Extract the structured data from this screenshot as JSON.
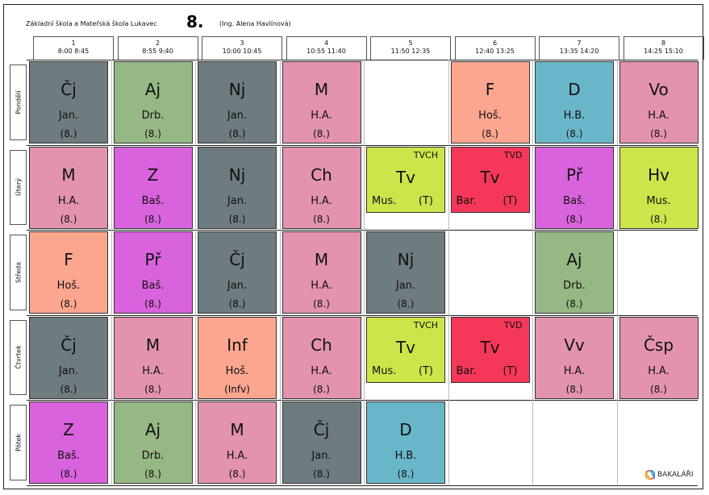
{
  "header": {
    "school": "Základní škola a Mateřská škola Lukavec",
    "class_name": "8.",
    "teacher": "(Ing. Alena Havlínová)"
  },
  "hours": [
    {
      "num": "1",
      "time": "8:00 8:45"
    },
    {
      "num": "2",
      "time": "8:55 9:40"
    },
    {
      "num": "3",
      "time": "10:00 10:45"
    },
    {
      "num": "4",
      "time": "10:55 11:40"
    },
    {
      "num": "5",
      "time": "11:50 12:35"
    },
    {
      "num": "6",
      "time": "12:40 13:25"
    },
    {
      "num": "7",
      "time": "13:35 14:20"
    },
    {
      "num": "8",
      "time": "14:25 15:10"
    }
  ],
  "days": [
    "Pondělí",
    "Úterý",
    "Středa",
    "Čtvrtek",
    "Pátek"
  ],
  "colors": {
    "dark": "#6e7b80",
    "pink": "#e393ae",
    "green": "#96b884",
    "salmon": "#fca690",
    "blue": "#6ab6c9",
    "purple": "#d963dd",
    "lime": "#cde44b",
    "red": "#f5375a"
  },
  "lessons": [
    [
      {
        "subject": "Čj",
        "teacher": "Jan.",
        "room": "(8.)",
        "color": "#6e7b80"
      },
      {
        "subject": "Aj",
        "teacher": "Drb.",
        "room": "(8.)",
        "color": "#96b884"
      },
      {
        "subject": "Nj",
        "teacher": "Jan.",
        "room": "(8.)",
        "color": "#6e7b80"
      },
      {
        "subject": "M",
        "teacher": "H.A.",
        "room": "(8.)",
        "color": "#e393ae"
      },
      null,
      {
        "subject": "F",
        "teacher": "Hoš.",
        "room": "(8.)",
        "color": "#fca690"
      },
      {
        "subject": "D",
        "teacher": "H.B.",
        "room": "(8.)",
        "color": "#6ab6c9"
      },
      {
        "subject": "Vo",
        "teacher": "H.A.",
        "room": "(8.)",
        "color": "#e393ae"
      }
    ],
    [
      {
        "subject": "M",
        "teacher": "H.A.",
        "room": "(8.)",
        "color": "#e393ae"
      },
      {
        "subject": "Z",
        "teacher": "Baš.",
        "room": "(8.)",
        "color": "#d963dd"
      },
      {
        "subject": "Nj",
        "teacher": "Jan.",
        "room": "(8.)",
        "color": "#6e7b80"
      },
      {
        "subject": "Ch",
        "teacher": "H.A.",
        "room": "(8.)",
        "color": "#e393ae"
      },
      {
        "subject": "Tv",
        "teacher": "Mus.",
        "room": "(T)",
        "group": "TVCH",
        "color": "#cde44b"
      },
      {
        "subject": "Tv",
        "teacher": "Bar.",
        "room": "(T)",
        "group": "TVD",
        "color": "#f5375a"
      },
      {
        "subject": "Př",
        "teacher": "Baš.",
        "room": "(8.)",
        "color": "#d963dd"
      },
      {
        "subject": "Hv",
        "teacher": "Mus.",
        "room": "(8.)",
        "color": "#cde44b"
      }
    ],
    [
      {
        "subject": "F",
        "teacher": "Hoš.",
        "room": "(8.)",
        "color": "#fca690"
      },
      {
        "subject": "Př",
        "teacher": "Baš.",
        "room": "(8.)",
        "color": "#d963dd"
      },
      {
        "subject": "Čj",
        "teacher": "Jan.",
        "room": "(8.)",
        "color": "#6e7b80"
      },
      {
        "subject": "M",
        "teacher": "H.A.",
        "room": "(8.)",
        "color": "#e393ae"
      },
      {
        "subject": "Nj",
        "teacher": "Jan.",
        "room": "(8.)",
        "color": "#6e7b80"
      },
      null,
      {
        "subject": "Aj",
        "teacher": "Drb.",
        "room": "(8.)",
        "color": "#96b884"
      },
      null
    ],
    [
      {
        "subject": "Čj",
        "teacher": "Jan.",
        "room": "(8.)",
        "color": "#6e7b80"
      },
      {
        "subject": "M",
        "teacher": "H.A.",
        "room": "(8.)",
        "color": "#e393ae"
      },
      {
        "subject": "Inf",
        "teacher": "Hoš.",
        "room": "(Infv)",
        "color": "#fca690"
      },
      {
        "subject": "Ch",
        "teacher": "H.A.",
        "room": "(8.)",
        "color": "#e393ae"
      },
      {
        "subject": "Tv",
        "teacher": "Mus.",
        "room": "(T)",
        "group": "TVCH",
        "color": "#cde44b"
      },
      {
        "subject": "Tv",
        "teacher": "Bar.",
        "room": "(T)",
        "group": "TVD",
        "color": "#f5375a"
      },
      {
        "subject": "Vv",
        "teacher": "H.A.",
        "room": "(8.)",
        "color": "#e393ae"
      },
      {
        "subject": "Čsp",
        "teacher": "H.A.",
        "room": "(8.)",
        "color": "#e393ae"
      }
    ],
    [
      {
        "subject": "Z",
        "teacher": "Baš.",
        "room": "(8.)",
        "color": "#d963dd"
      },
      {
        "subject": "Aj",
        "teacher": "Drb.",
        "room": "(8.)",
        "color": "#96b884"
      },
      {
        "subject": "M",
        "teacher": "H.A.",
        "room": "(8.)",
        "color": "#e393ae"
      },
      {
        "subject": "Čj",
        "teacher": "Jan.",
        "room": "(8.)",
        "color": "#6e7b80"
      },
      {
        "subject": "D",
        "teacher": "H.B.",
        "room": "(8.)",
        "color": "#6ab6c9"
      },
      null,
      null,
      null
    ]
  ],
  "footer": {
    "logo_text": "BAKALÁŘI"
  }
}
